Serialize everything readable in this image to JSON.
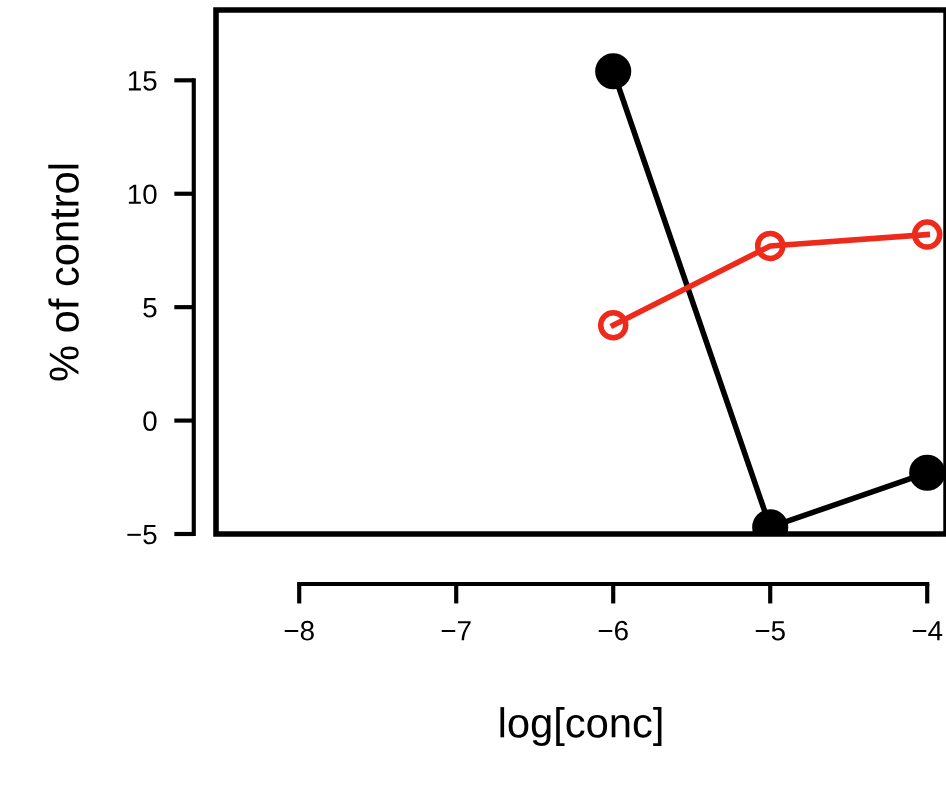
{
  "chart_data": {
    "type": "line",
    "xlabel": "log[conc]",
    "ylabel": "% of control",
    "marker": "circle",
    "series": [
      {
        "color": "#000000",
        "x": [
          -6,
          -5,
          -4
        ],
        "values": [
          15.4,
          -4.7,
          -2.3
        ]
      },
      {
        "color": "#ee2a1b",
        "x": [
          -6,
          -5,
          -4
        ],
        "values": [
          4.2,
          7.7,
          8.2
        ]
      }
    ],
    "xlim": [
      -8.53,
      -3.88
    ],
    "ylim": [
      -5,
      18.1
    ],
    "xticks": [
      -8,
      -7,
      -6,
      -5,
      -4
    ],
    "yticks": [
      -5,
      0,
      5,
      10,
      15
    ],
    "grid": false
  }
}
